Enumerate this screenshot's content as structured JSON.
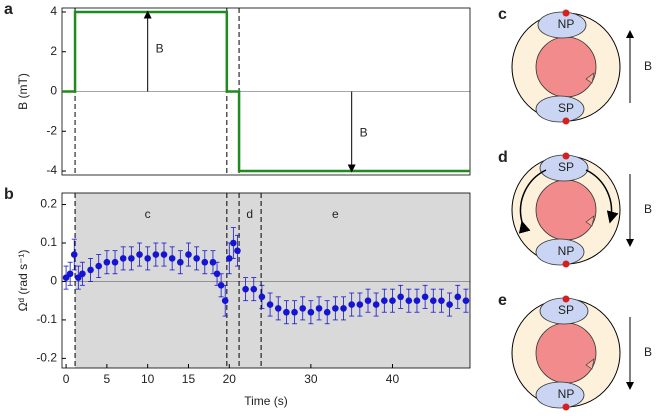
{
  "chart_data": [
    {
      "type": "line",
      "panel_label": "a",
      "ylabel": "B (mT)",
      "x": [
        -0.5,
        1.1,
        1.1,
        19.7,
        19.7,
        21.2,
        21.2,
        49.5
      ],
      "series": [
        {
          "color": "#1f8a1f",
          "values": [
            0,
            0,
            4,
            4,
            0,
            0,
            -4,
            -4
          ]
        }
      ],
      "xlim": [
        -0.5,
        49.5
      ],
      "ylim": [
        -4.2,
        4.2
      ],
      "yticks": [
        -4,
        -2,
        0,
        2,
        4
      ],
      "vlines": [
        1.1,
        19.7,
        21.2
      ],
      "zero_line": true,
      "annotations": [
        "B",
        "B"
      ]
    },
    {
      "type": "scatter",
      "panel_label": "b",
      "xlabel": "Time (s)",
      "ylabel": "Ωᵈ (rad s⁻¹)",
      "x": [
        0,
        0.5,
        1,
        1.5,
        2,
        3,
        4,
        5,
        6,
        7,
        8,
        9,
        10,
        11,
        12,
        13,
        14,
        15,
        16,
        17,
        18,
        18.5,
        19,
        19.5,
        20,
        20.5,
        21,
        22,
        23,
        24,
        25,
        26,
        27,
        28,
        29,
        30,
        31,
        32,
        33,
        34,
        35,
        36,
        37,
        38,
        39,
        40,
        41,
        42,
        43,
        44,
        45,
        46,
        47,
        48,
        49
      ],
      "values": [
        0.01,
        0.02,
        0.07,
        0.01,
        0.02,
        0.03,
        0.04,
        0.05,
        0.05,
        0.06,
        0.06,
        0.07,
        0.06,
        0.07,
        0.07,
        0.06,
        0.05,
        0.07,
        0.06,
        0.05,
        0.05,
        0.02,
        -0.01,
        -0.05,
        0.06,
        0.1,
        0.08,
        -0.02,
        -0.02,
        -0.04,
        -0.06,
        -0.07,
        -0.08,
        -0.08,
        -0.07,
        -0.08,
        -0.07,
        -0.08,
        -0.07,
        -0.07,
        -0.06,
        -0.06,
        -0.05,
        -0.06,
        -0.05,
        -0.05,
        -0.04,
        -0.05,
        -0.05,
        -0.04,
        -0.05,
        -0.05,
        -0.06,
        -0.04,
        -0.05
      ],
      "errors": [
        0.03,
        0.03,
        0.04,
        0.03,
        0.03,
        0.03,
        0.03,
        0.03,
        0.03,
        0.03,
        0.03,
        0.03,
        0.03,
        0.03,
        0.03,
        0.03,
        0.03,
        0.03,
        0.03,
        0.03,
        0.03,
        0.03,
        0.03,
        0.04,
        0.04,
        0.04,
        0.04,
        0.03,
        0.03,
        0.03,
        0.03,
        0.03,
        0.03,
        0.03,
        0.03,
        0.03,
        0.03,
        0.03,
        0.03,
        0.03,
        0.03,
        0.03,
        0.03,
        0.03,
        0.03,
        0.03,
        0.03,
        0.03,
        0.03,
        0.03,
        0.03,
        0.03,
        0.03,
        0.03,
        0.03
      ],
      "color": "#1414d2",
      "xlim": [
        -0.5,
        49.5
      ],
      "ylim": [
        -0.225,
        0.23
      ],
      "xticks": [
        0,
        5,
        10,
        15,
        20,
        30,
        40
      ],
      "yticks": [
        -0.2,
        -0.1,
        0,
        0.1,
        0.2
      ],
      "vlines": [
        1.1,
        19.7,
        21.2,
        23.9
      ],
      "shade": [
        1.1,
        49.5
      ],
      "zero_line": true,
      "annotations": [
        "c",
        "d",
        "e"
      ]
    }
  ],
  "diagrams": [
    {
      "label": "c",
      "top": "NP",
      "bottom": "SP",
      "field": "B"
    },
    {
      "label": "d",
      "top": "SP",
      "bottom": "NP",
      "field": "B"
    },
    {
      "label": "e",
      "top": "SP",
      "bottom": "NP",
      "field": "B"
    }
  ]
}
